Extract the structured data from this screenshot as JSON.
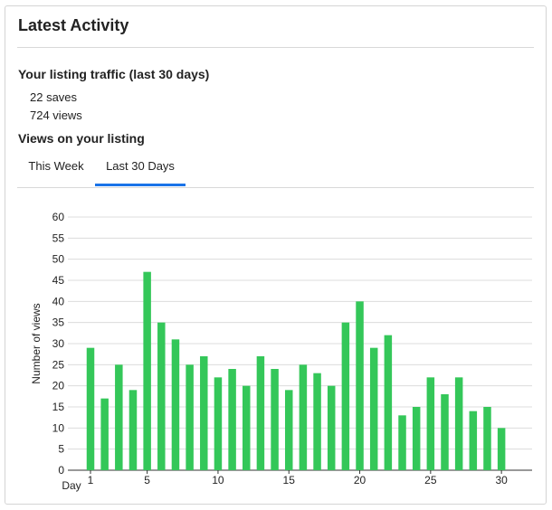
{
  "card": {
    "title": "Latest Activity"
  },
  "traffic": {
    "heading": "Your listing traffic (last 30 days)",
    "saves": "22 saves",
    "views": "724 views"
  },
  "views_section": {
    "heading": "Views on your listing",
    "tabs": [
      {
        "label": "This Week",
        "active": false
      },
      {
        "label": "Last 30 Days",
        "active": true
      }
    ]
  },
  "colors": {
    "bar": "#34c759",
    "accent": "#1a73e8"
  },
  "chart_data": {
    "type": "bar",
    "xlabel": "Day",
    "ylabel": "Number of views",
    "ylim": [
      0,
      60
    ],
    "yticks": [
      0,
      5,
      10,
      15,
      20,
      25,
      30,
      35,
      40,
      45,
      50,
      55,
      60
    ],
    "xticks": [
      1,
      5,
      10,
      15,
      20,
      25,
      30
    ],
    "grid": true,
    "categories": [
      1,
      2,
      3,
      4,
      5,
      6,
      7,
      8,
      9,
      10,
      11,
      12,
      13,
      14,
      15,
      16,
      17,
      18,
      19,
      20,
      21,
      22,
      23,
      24,
      25,
      26,
      27,
      28,
      29,
      30
    ],
    "values": [
      29,
      17,
      25,
      19,
      47,
      35,
      31,
      25,
      27,
      22,
      24,
      20,
      27,
      24,
      19,
      25,
      23,
      20,
      35,
      40,
      29,
      32,
      13,
      15,
      22,
      18,
      22,
      14,
      15,
      10
    ]
  }
}
